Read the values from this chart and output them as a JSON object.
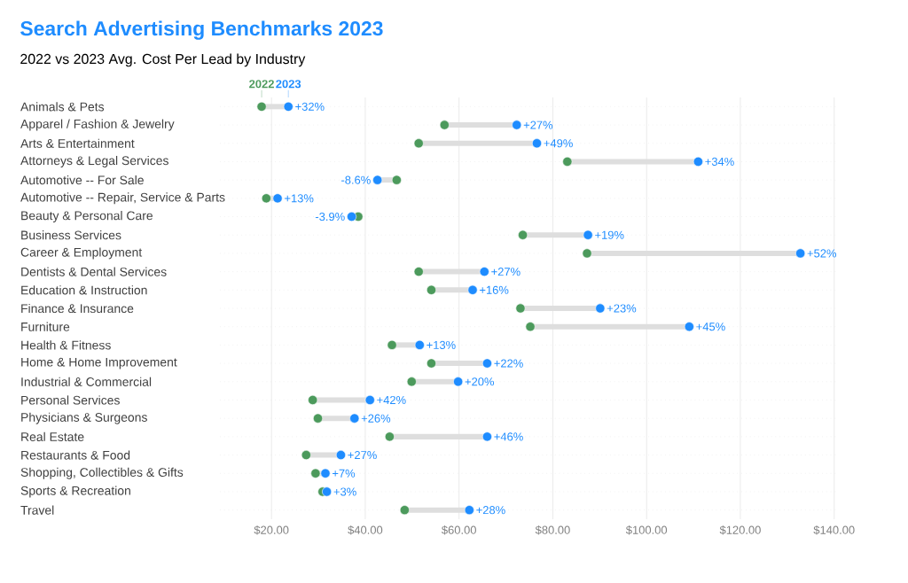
{
  "chart_data": {
    "type": "scatter",
    "title": "Search Advertising Benchmarks 2023",
    "subtitle": "2022 vs 2023 Avg. Cost Per Lead by Industry",
    "orientation": "horizontal",
    "grid": "x",
    "legend": false,
    "categories": [
      "Animals & Pets",
      "Apparel / Fashion & Jewelry",
      "Arts & Entertainment",
      "Attorneys & Legal Services",
      "Automotive -- For Sale",
      "Automotive -- Repair, Service & Parts",
      "Beauty & Personal Care",
      "Business Services",
      "Career & Employment",
      "Dentists & Dental Services",
      "Education & Instruction",
      "Finance & Insurance",
      "Furniture",
      "Health & Fitness",
      "Home & Home Improvement",
      "Industrial & Commercial",
      "Personal Services",
      "Physicians & Surgeons",
      "Real Estate",
      "Restaurants & Food",
      "Shopping, Collectibles & Gifts",
      "Sports & Recreation",
      "Travel"
    ],
    "series": [
      {
        "name": "2022",
        "color": "#4c9a5c",
        "values": [
          17.9,
          56.9,
          51.4,
          83.1,
          46.7,
          18.9,
          38.5,
          73.6,
          87.3,
          51.4,
          54.1,
          73.1,
          75.2,
          45.7,
          54.1,
          49.9,
          28.8,
          29.9,
          45.2,
          27.4,
          29.4,
          30.9,
          48.4
        ]
      },
      {
        "name": "2023",
        "color": "#1e8cff",
        "values": [
          23.6,
          72.3,
          76.6,
          111.0,
          42.6,
          21.3,
          37.1,
          87.5,
          132.8,
          65.4,
          62.9,
          90.1,
          109.1,
          51.6,
          66.0,
          59.8,
          41.0,
          37.7,
          66.0,
          34.8,
          31.5,
          31.8,
          62.2
        ]
      }
    ],
    "annotations": [
      {
        "text": "+32%",
        "x": 23.6,
        "y": "Animals & Pets"
      },
      {
        "text": "+27%",
        "x": 72.3,
        "y": "Apparel / Fashion & Jewelry"
      },
      {
        "text": "+49%",
        "x": 76.6,
        "y": "Arts & Entertainment"
      },
      {
        "text": "+34%",
        "x": 111.0,
        "y": "Attorneys & Legal Services"
      },
      {
        "text": "-8.6%",
        "x": 42.6,
        "y": "Automotive -- For Sale"
      },
      {
        "text": "+13%",
        "x": 21.3,
        "y": "Automotive -- Repair, Service & Parts"
      },
      {
        "text": "-3.9%",
        "x": 37.1,
        "y": "Beauty & Personal Care"
      },
      {
        "text": "+19%",
        "x": 87.5,
        "y": "Business Services"
      },
      {
        "text": "+52%",
        "x": 132.8,
        "y": "Career & Employment"
      },
      {
        "text": "+27%",
        "x": 65.4,
        "y": "Dentists & Dental Services"
      },
      {
        "text": "+16%",
        "x": 62.9,
        "y": "Education & Instruction"
      },
      {
        "text": "+23%",
        "x": 90.1,
        "y": "Finance & Insurance"
      },
      {
        "text": "+45%",
        "x": 109.1,
        "y": "Furniture"
      },
      {
        "text": "+13%",
        "x": 51.6,
        "y": "Health & Fitness"
      },
      {
        "text": "+22%",
        "x": 66.0,
        "y": "Home & Home Improvement"
      },
      {
        "text": "+20%",
        "x": 59.8,
        "y": "Industrial & Commercial"
      },
      {
        "text": "+42%",
        "x": 41.0,
        "y": "Personal Services"
      },
      {
        "text": "+26%",
        "x": 37.7,
        "y": "Physicians & Surgeons"
      },
      {
        "text": "+46%",
        "x": 66.0,
        "y": "Real Estate"
      },
      {
        "text": "+27%",
        "x": 34.8,
        "y": "Restaurants & Food"
      },
      {
        "text": "+7%",
        "x": 31.5,
        "y": "Shopping, Collectibles & Gifts"
      },
      {
        "text": "+3%",
        "x": 31.8,
        "y": "Sports & Recreation"
      },
      {
        "text": "+28%",
        "x": 62.2,
        "y": "Travel"
      }
    ],
    "xlim": [
      9,
      141
    ],
    "xticks": [
      {
        "value": 20,
        "label": "$20.00"
      },
      {
        "value": 40,
        "label": "$40.00"
      },
      {
        "value": 60,
        "label": "$60.00"
      },
      {
        "value": 80,
        "label": "$80.00"
      },
      {
        "value": 100,
        "label": "$100.00"
      },
      {
        "value": 120,
        "label": "$120.00"
      },
      {
        "value": 140,
        "label": "$140.00"
      }
    ]
  }
}
